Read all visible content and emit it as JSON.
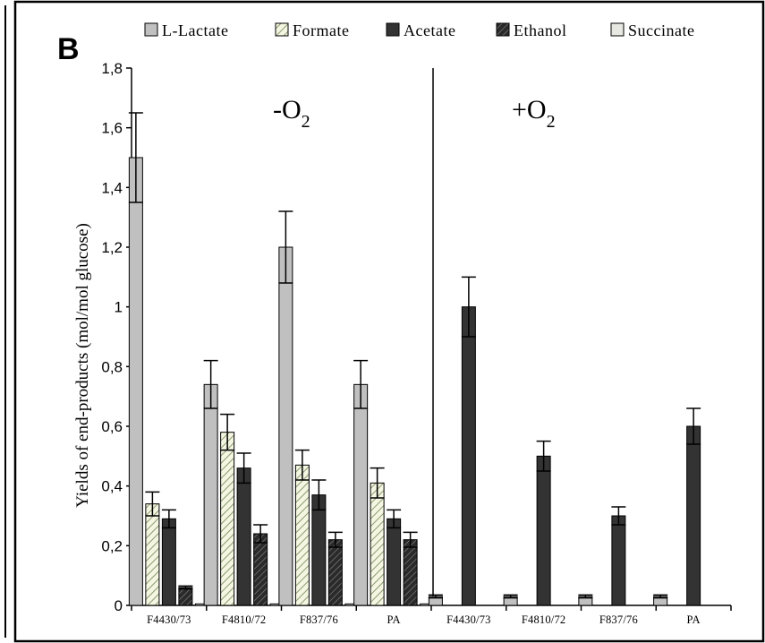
{
  "chart_data": {
    "type": "bar",
    "panel_label": "B",
    "ylabel": "Yields of end-products (mol/mol glucose)",
    "ylim": [
      0,
      1.8
    ],
    "yticks": [
      "0",
      "0,2",
      "0,4",
      "0,6",
      "0,8",
      "1",
      "1,2",
      "1,4",
      "1,6",
      "1,8"
    ],
    "conditions": [
      {
        "label": "-O",
        "subscript": "2"
      },
      {
        "label": "+O",
        "subscript": "2"
      }
    ],
    "categories": [
      "F4430/73",
      "F4810/72",
      "F837/76",
      "PA",
      "F4430/73",
      "F4810/72",
      "F837/76",
      "PA"
    ],
    "series": [
      {
        "name": "L-Lactate",
        "values": [
          1.5,
          0.74,
          1.2,
          0.74,
          0.03,
          0.03,
          0.03,
          0.03
        ],
        "errors": [
          0.15,
          0.08,
          0.12,
          0.08,
          0.005,
          0.005,
          0.005,
          0.005
        ]
      },
      {
        "name": "Formate",
        "values": [
          0.34,
          0.58,
          0.47,
          0.41,
          0,
          0,
          0,
          0
        ],
        "errors": [
          0.04,
          0.06,
          0.05,
          0.05,
          0,
          0,
          0,
          0
        ]
      },
      {
        "name": "Acetate",
        "values": [
          0.29,
          0.46,
          0.37,
          0.29,
          1.0,
          0.5,
          0.3,
          0.6
        ],
        "errors": [
          0.03,
          0.05,
          0.05,
          0.03,
          0.1,
          0.05,
          0.03,
          0.06
        ]
      },
      {
        "name": "Ethanol",
        "values": [
          0.06,
          0.24,
          0.22,
          0.22,
          0,
          0,
          0,
          0
        ],
        "errors": [
          0.005,
          0.03,
          0.025,
          0.025,
          0,
          0,
          0,
          0
        ]
      },
      {
        "name": "Succinate",
        "values": [
          0.005,
          0.005,
          0.005,
          0.005,
          0,
          0,
          0,
          0
        ],
        "errors": [
          0,
          0,
          0,
          0,
          0,
          0,
          0,
          0
        ]
      }
    ],
    "grid": false,
    "legend_position": "top"
  }
}
